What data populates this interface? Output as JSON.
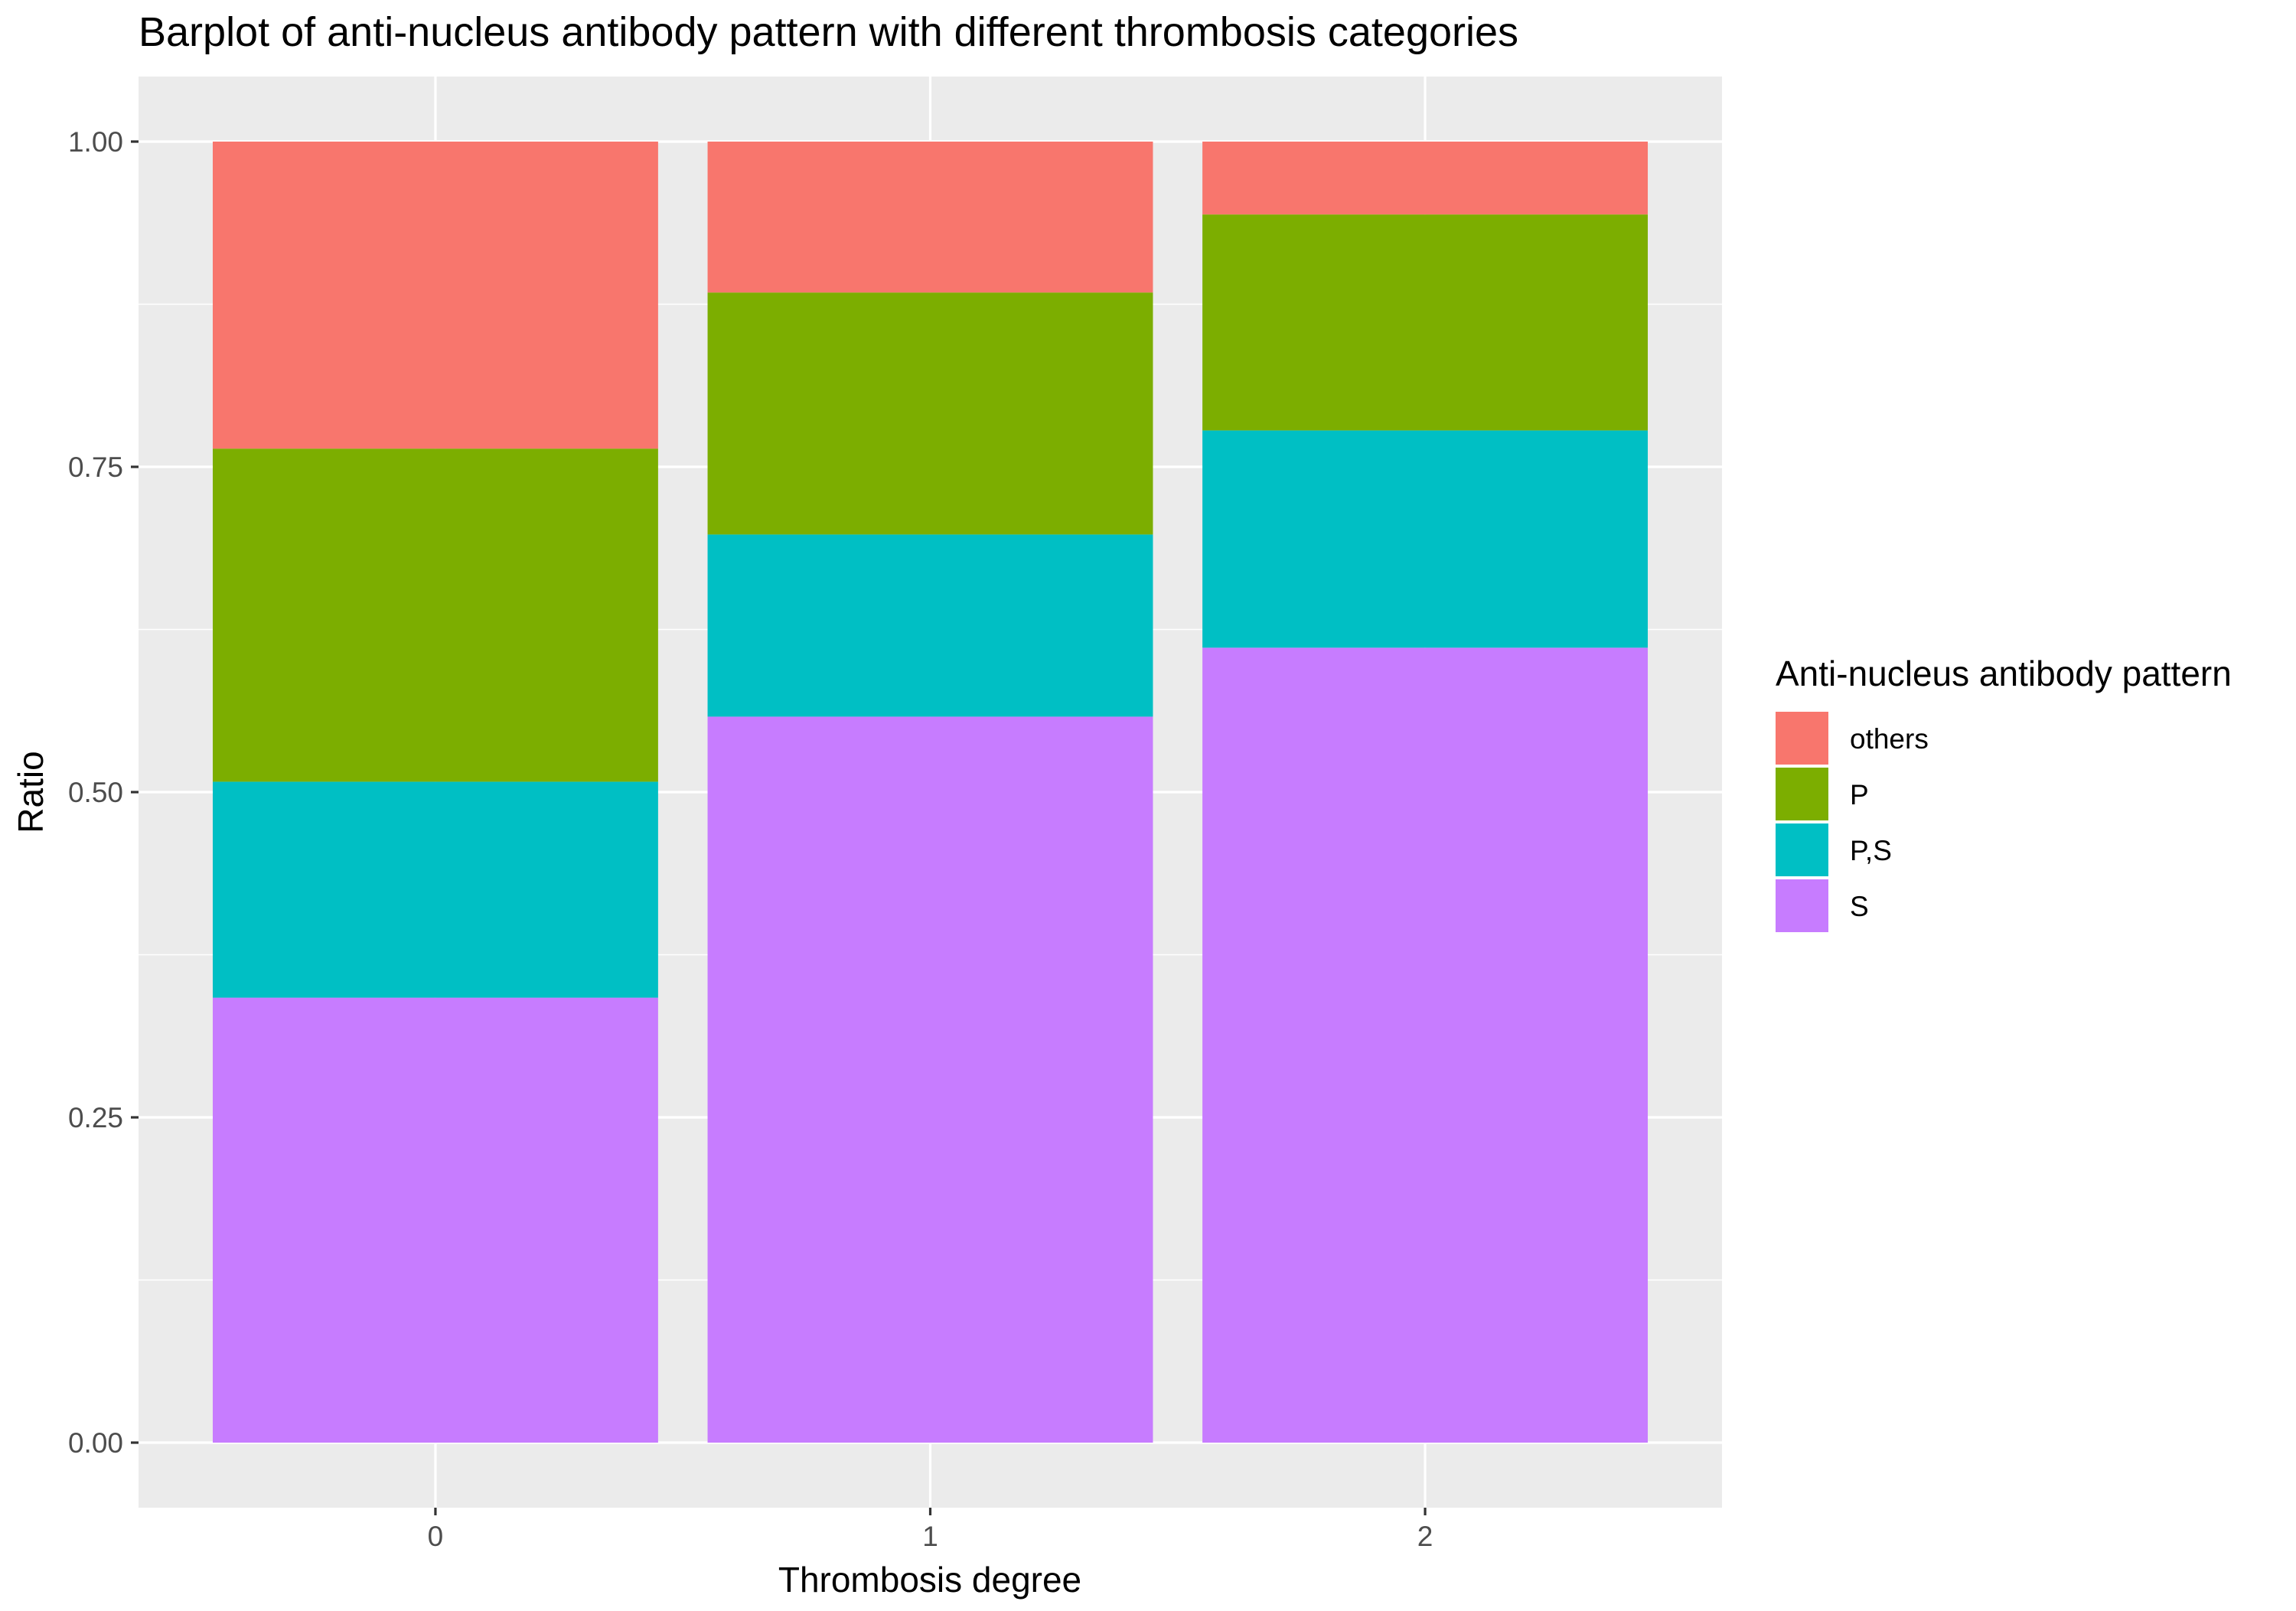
{
  "chart_data": {
    "type": "bar",
    "stacked": true,
    "title": "Barplot of anti-nucleus antibody pattern with different thrombosis categories",
    "xlabel": "Thrombosis degree",
    "ylabel": "Ratio",
    "categories": [
      "0",
      "1",
      "2"
    ],
    "ylim": [
      -0.05,
      1.05
    ],
    "yticks": [
      "0.00",
      "0.25",
      "0.50",
      "0.75",
      "1.00"
    ],
    "ytick_values": [
      0,
      0.25,
      0.5,
      0.75,
      1.0
    ],
    "grid": true,
    "legend": {
      "title": "Anti-nucleus antibody pattern",
      "placement": "right",
      "entries": [
        "others",
        "P",
        "P,S",
        "S"
      ]
    },
    "series": [
      {
        "name": "S",
        "color": "#C77CFF",
        "values": [
          0.342,
          0.558,
          0.611
        ]
      },
      {
        "name": "P,S",
        "color": "#00BFC4",
        "values": [
          0.166,
          0.14,
          0.167
        ]
      },
      {
        "name": "P",
        "color": "#7CAE00",
        "values": [
          0.256,
          0.186,
          0.166
        ]
      },
      {
        "name": "others",
        "color": "#F8766D",
        "values": [
          0.236,
          0.116,
          0.056
        ]
      }
    ]
  }
}
